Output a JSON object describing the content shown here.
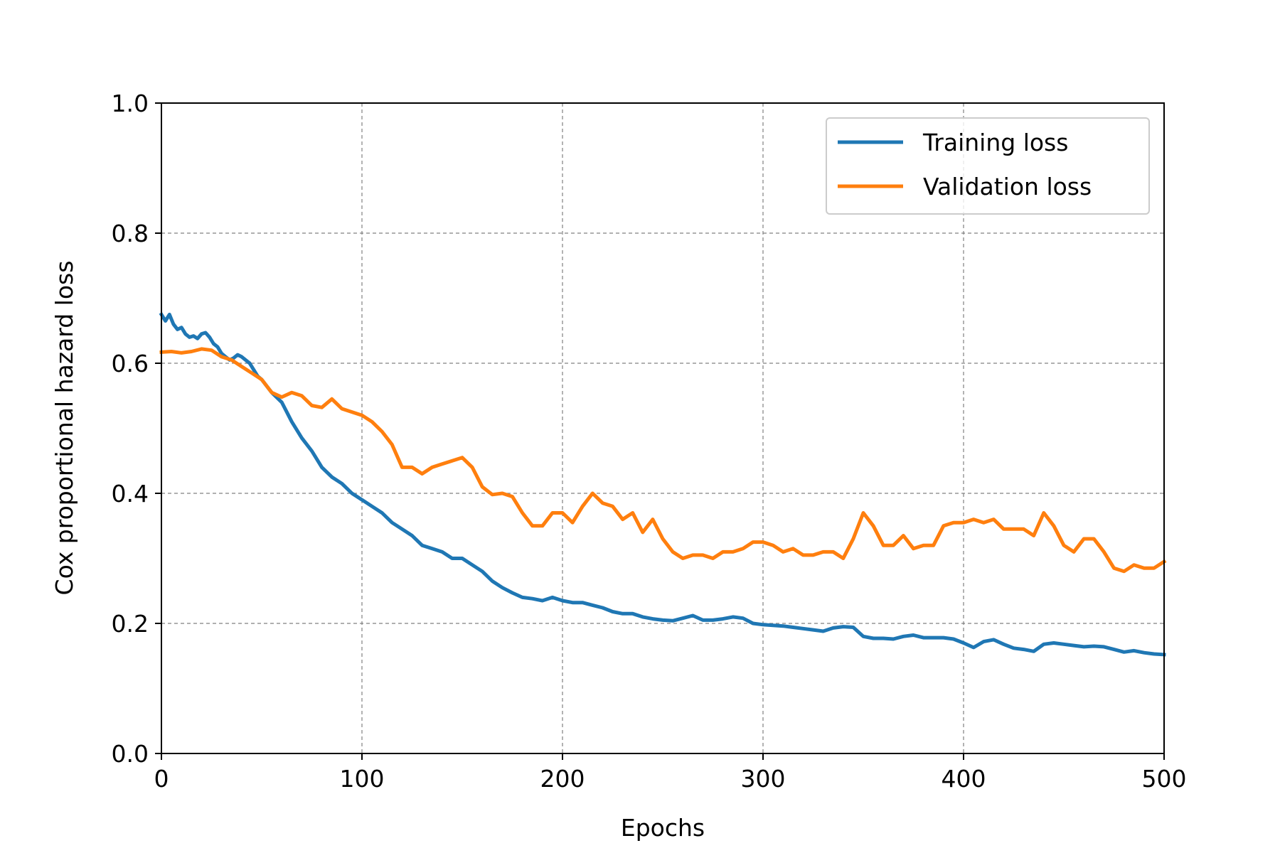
{
  "chart_data": {
    "type": "line",
    "title": "",
    "xlabel": "Epochs",
    "ylabel": "Cox proportional hazard loss",
    "xlim": [
      0,
      500
    ],
    "ylim": [
      0.0,
      1.0
    ],
    "xticks": [
      0,
      100,
      200,
      300,
      400,
      500
    ],
    "xtick_labels": [
      "0",
      "100",
      "200",
      "300",
      "400",
      "500"
    ],
    "yticks": [
      0.0,
      0.2,
      0.4,
      0.6,
      0.8,
      1.0
    ],
    "ytick_labels": [
      "0.0",
      "0.2",
      "0.4",
      "0.6",
      "0.8",
      "1.0"
    ],
    "grid": true,
    "legend_position": "top-right",
    "series": [
      {
        "name": "Training loss",
        "color": "#1f77b4",
        "x": [
          0,
          2,
          4,
          6,
          8,
          10,
          12,
          14,
          16,
          18,
          20,
          22,
          24,
          26,
          28,
          30,
          32,
          34,
          36,
          38,
          40,
          42,
          44,
          46,
          48,
          50,
          55,
          60,
          65,
          70,
          75,
          80,
          85,
          90,
          95,
          100,
          105,
          110,
          115,
          120,
          125,
          130,
          135,
          140,
          145,
          150,
          155,
          160,
          165,
          170,
          175,
          180,
          185,
          190,
          195,
          200,
          205,
          210,
          215,
          220,
          225,
          230,
          235,
          240,
          245,
          250,
          255,
          260,
          265,
          270,
          275,
          280,
          285,
          290,
          295,
          300,
          305,
          310,
          315,
          320,
          325,
          330,
          335,
          340,
          345,
          350,
          355,
          360,
          365,
          370,
          375,
          380,
          385,
          390,
          395,
          400,
          405,
          410,
          415,
          420,
          425,
          430,
          435,
          440,
          445,
          450,
          455,
          460,
          465,
          470,
          475,
          480,
          485,
          490,
          495,
          500
        ],
        "y": [
          0.675,
          0.665,
          0.675,
          0.66,
          0.652,
          0.655,
          0.645,
          0.64,
          0.642,
          0.638,
          0.645,
          0.647,
          0.64,
          0.63,
          0.625,
          0.615,
          0.61,
          0.605,
          0.608,
          0.613,
          0.61,
          0.605,
          0.6,
          0.59,
          0.58,
          0.575,
          0.555,
          0.54,
          0.51,
          0.485,
          0.465,
          0.44,
          0.425,
          0.415,
          0.4,
          0.39,
          0.38,
          0.37,
          0.355,
          0.345,
          0.335,
          0.32,
          0.315,
          0.31,
          0.3,
          0.3,
          0.29,
          0.28,
          0.265,
          0.255,
          0.247,
          0.24,
          0.238,
          0.235,
          0.24,
          0.235,
          0.232,
          0.232,
          0.228,
          0.224,
          0.218,
          0.215,
          0.215,
          0.21,
          0.207,
          0.205,
          0.204,
          0.208,
          0.212,
          0.205,
          0.205,
          0.207,
          0.21,
          0.208,
          0.2,
          0.198,
          0.197,
          0.196,
          0.194,
          0.192,
          0.19,
          0.188,
          0.193,
          0.195,
          0.194,
          0.18,
          0.177,
          0.177,
          0.176,
          0.18,
          0.182,
          0.178,
          0.178,
          0.178,
          0.176,
          0.17,
          0.163,
          0.172,
          0.175,
          0.168,
          0.162,
          0.16,
          0.157,
          0.168,
          0.17,
          0.168,
          0.166,
          0.164,
          0.165,
          0.164,
          0.16,
          0.156,
          0.158,
          0.155,
          0.153,
          0.152
        ]
      },
      {
        "name": "Validation loss",
        "color": "#ff7f0e",
        "x": [
          0,
          5,
          10,
          15,
          20,
          25,
          30,
          35,
          40,
          45,
          50,
          55,
          60,
          65,
          70,
          75,
          80,
          85,
          90,
          95,
          100,
          105,
          110,
          115,
          120,
          125,
          130,
          135,
          140,
          145,
          150,
          155,
          160,
          165,
          170,
          175,
          180,
          185,
          190,
          195,
          200,
          205,
          210,
          215,
          220,
          225,
          230,
          235,
          240,
          245,
          250,
          255,
          260,
          265,
          270,
          275,
          280,
          285,
          290,
          295,
          300,
          305,
          310,
          315,
          320,
          325,
          330,
          335,
          340,
          345,
          350,
          355,
          360,
          365,
          370,
          375,
          380,
          385,
          390,
          395,
          400,
          405,
          410,
          415,
          420,
          425,
          430,
          435,
          440,
          445,
          450,
          455,
          460,
          465,
          470,
          475,
          480,
          485,
          490,
          495,
          500
        ],
        "y": [
          0.617,
          0.618,
          0.616,
          0.618,
          0.622,
          0.62,
          0.61,
          0.605,
          0.595,
          0.585,
          0.575,
          0.555,
          0.548,
          0.555,
          0.55,
          0.535,
          0.532,
          0.545,
          0.53,
          0.525,
          0.52,
          0.51,
          0.495,
          0.475,
          0.44,
          0.44,
          0.43,
          0.44,
          0.445,
          0.45,
          0.455,
          0.44,
          0.41,
          0.398,
          0.4,
          0.395,
          0.37,
          0.35,
          0.35,
          0.37,
          0.37,
          0.355,
          0.38,
          0.4,
          0.385,
          0.38,
          0.36,
          0.37,
          0.34,
          0.36,
          0.33,
          0.31,
          0.3,
          0.305,
          0.305,
          0.3,
          0.31,
          0.31,
          0.315,
          0.325,
          0.325,
          0.32,
          0.31,
          0.315,
          0.305,
          0.305,
          0.31,
          0.31,
          0.3,
          0.33,
          0.37,
          0.35,
          0.32,
          0.32,
          0.335,
          0.315,
          0.32,
          0.32,
          0.35,
          0.355,
          0.355,
          0.36,
          0.355,
          0.36,
          0.345,
          0.345,
          0.345,
          0.335,
          0.37,
          0.35,
          0.32,
          0.31,
          0.33,
          0.33,
          0.31,
          0.285,
          0.28,
          0.29,
          0.285,
          0.285,
          0.295
        ]
      }
    ]
  }
}
